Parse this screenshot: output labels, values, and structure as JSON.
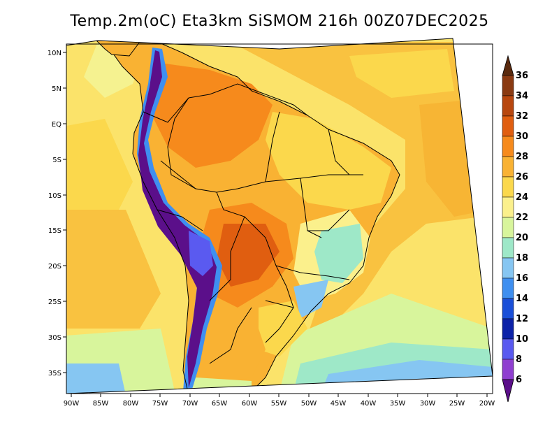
{
  "title": "Temp.2m(oC) Eta3km SiSMOM 216h 00Z07DEC2025",
  "map": {
    "variable": "2m temperature",
    "units": "oC",
    "lat_ticks": [
      "10N",
      "5N",
      "EQ",
      "5S",
      "10S",
      "15S",
      "20S",
      "25S",
      "30S",
      "35S"
    ],
    "lon_ticks": [
      "90W",
      "85W",
      "80W",
      "75W",
      "70W",
      "65W",
      "60W",
      "55W",
      "50W",
      "45W",
      "40W",
      "35W",
      "30W",
      "25W",
      "20W"
    ]
  },
  "colorbar": {
    "labels": [
      "36",
      "34",
      "32",
      "30",
      "28",
      "26",
      "24",
      "22",
      "20",
      "18",
      "16",
      "14",
      "12",
      "10",
      "8",
      "6"
    ],
    "colors": [
      "#5a2a0e",
      "#8a3a12",
      "#b8470f",
      "#e05e10",
      "#f68a1c",
      "#f9b233",
      "#fbd84c",
      "#fbf08c",
      "#d8f59c",
      "#9ee8c8",
      "#86c6f2",
      "#3f8ff0",
      "#1a4fd8",
      "#0c22a8",
      "#5a5af0",
      "#8f3fd0",
      "#5b0f8a"
    ]
  },
  "colors": {
    "ocean_warm": "#f9c240",
    "ocean_mild": "#fbe36a",
    "ocean_cool": "#f5f290",
    "border": "#000000"
  }
}
